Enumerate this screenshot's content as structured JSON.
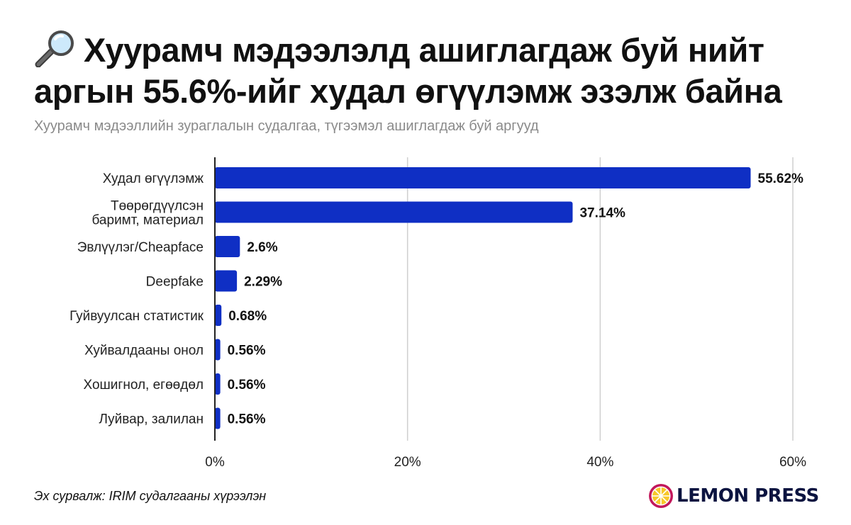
{
  "header": {
    "title_line1": "Хуурамч мэдээлэлд ашиглагдаж буй нийт",
    "title_line2": "аргын 55.6%-ийг худал өгүүлэмж эзэлж байна",
    "title_icon": "magnifying-glass-icon",
    "subtitle": "Хуурамч мэдээллийн зураглалын судалгаа, түгээмэл ашиглагдаж буй аргууд"
  },
  "chart_data": {
    "type": "bar",
    "orientation": "horizontal",
    "categories": [
      [
        "Худал өгүүлэмж"
      ],
      [
        "Төөрөгдүүлсэн",
        "баримт, материал"
      ],
      [
        "Эвлүүлэг/Cheapface"
      ],
      [
        "Deepfake"
      ],
      [
        "Гуйвуулсан статистик"
      ],
      [
        "Хуйвалдааны онол"
      ],
      [
        "Хошигнол, егөөдөл"
      ],
      [
        "Луйвар, залилан"
      ]
    ],
    "values": [
      55.62,
      37.14,
      2.6,
      2.29,
      0.68,
      0.56,
      0.56,
      0.56
    ],
    "value_labels": [
      "55.62%",
      "37.14%",
      "2.6%",
      "2.29%",
      "0.68%",
      "0.56%",
      "0.56%",
      "0.56%"
    ],
    "xlim": [
      0,
      60
    ],
    "xticks": [
      0,
      20,
      40,
      60
    ],
    "xtick_labels": [
      "0%",
      "20%",
      "40%",
      "60%"
    ],
    "grid": true,
    "xlabel": "",
    "ylabel": "",
    "bar_color": "#0f2fc4"
  },
  "footer": {
    "source": "Эх сурвалж: IRIM судалгааны хүрээлэн",
    "brand": "LEMON PRESS",
    "brand_icon": "lemon-slice-icon"
  },
  "colors": {
    "bar": "#0f2fc4",
    "grid": "#cfcfcf",
    "axis": "#222222",
    "subtitle": "#8a8a8a",
    "brand_text": "#0b1440",
    "lemon_outer": "#c2185b",
    "lemon_inner": "#f7c82b"
  }
}
